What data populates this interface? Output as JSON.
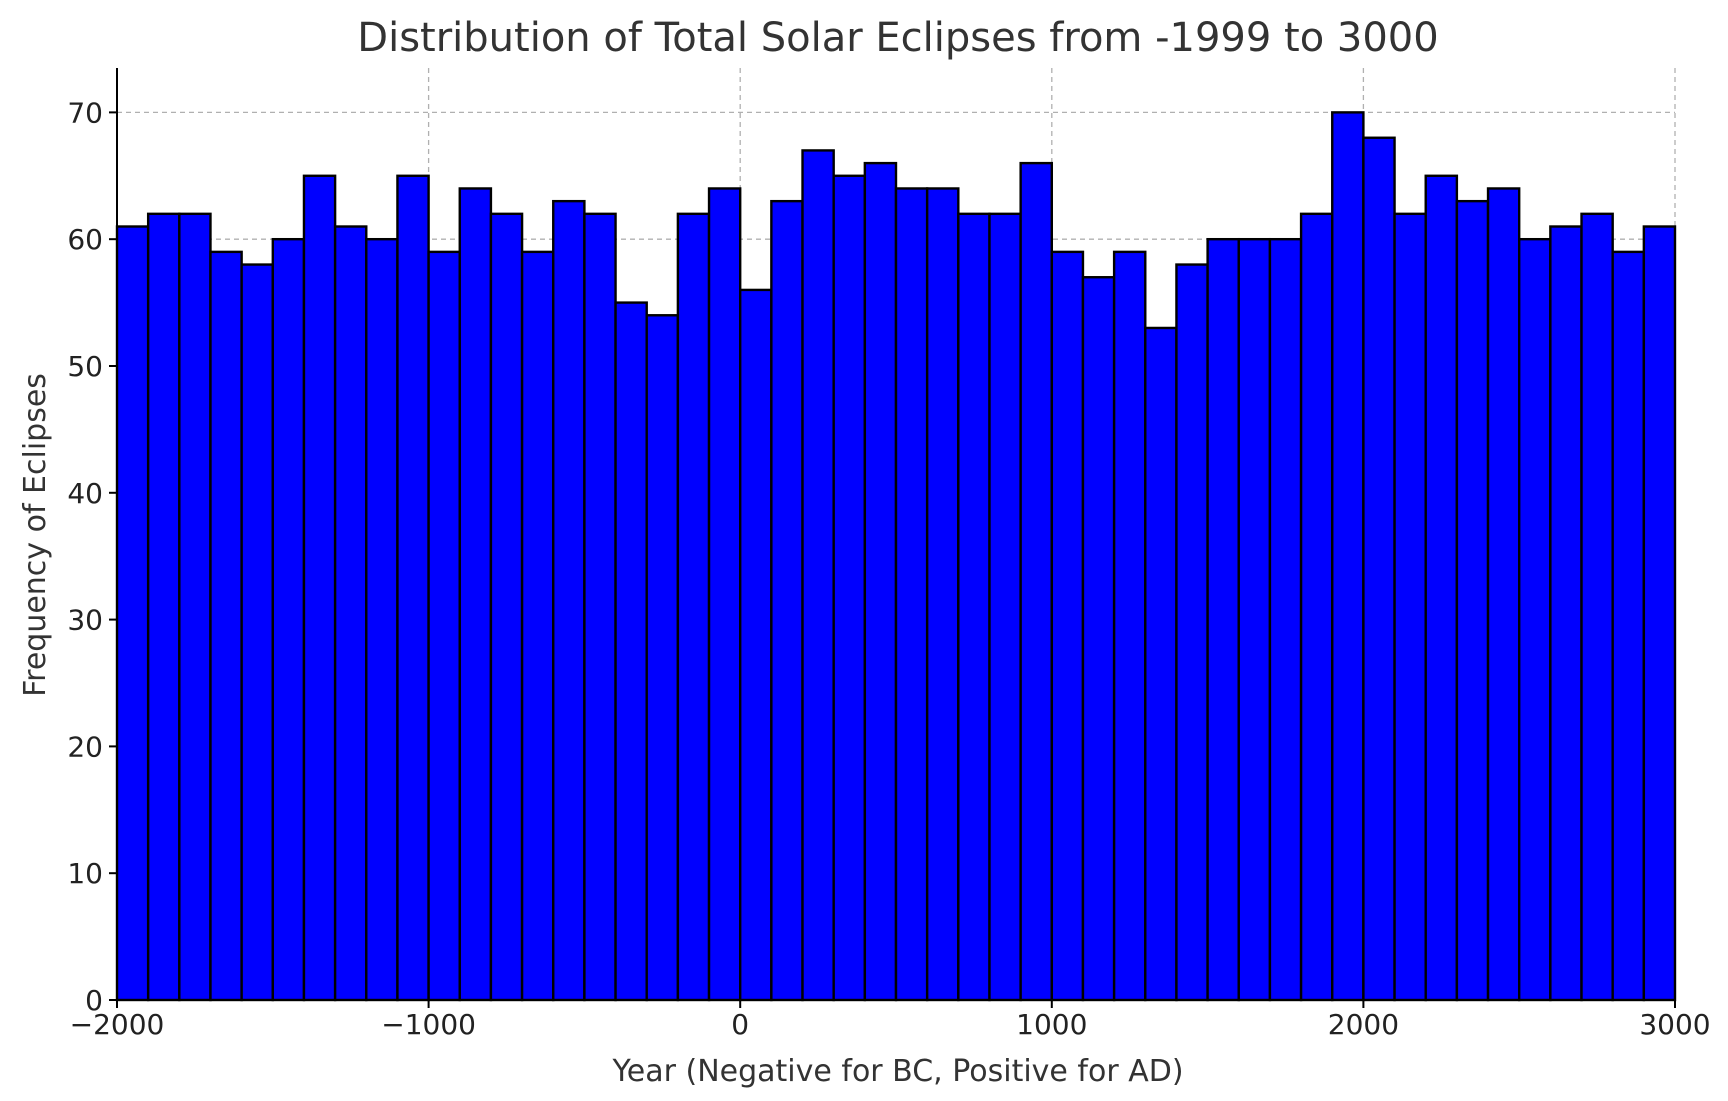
{
  "chart_data": {
    "type": "bar",
    "title": "Distribution of Total Solar Eclipses from -1999 to 3000",
    "xlabel": "Year (Negative for BC, Positive for AD)",
    "ylabel": "Frequency of Eclipses",
    "xlim": [
      -2000,
      3000
    ],
    "ylim": [
      0,
      73.5
    ],
    "bin_width": 100,
    "bin_starts": [
      -2000,
      -1900,
      -1800,
      -1700,
      -1600,
      -1500,
      -1400,
      -1300,
      -1200,
      -1100,
      -1000,
      -900,
      -800,
      -700,
      -600,
      -500,
      -400,
      -300,
      -200,
      -100,
      0,
      100,
      200,
      300,
      400,
      500,
      600,
      700,
      800,
      900,
      1000,
      1100,
      1200,
      1300,
      1400,
      1500,
      1600,
      1700,
      1800,
      1900,
      2000,
      2100,
      2200,
      2300,
      2400,
      2500,
      2600,
      2700,
      2800,
      2900
    ],
    "values": [
      61,
      62,
      62,
      59,
      58,
      60,
      65,
      61,
      60,
      65,
      59,
      64,
      62,
      59,
      63,
      62,
      55,
      54,
      62,
      64,
      56,
      63,
      67,
      65,
      66,
      64,
      64,
      62,
      62,
      66,
      59,
      57,
      59,
      53,
      58,
      60,
      60,
      60,
      62,
      70,
      68,
      62,
      65,
      63,
      64,
      60,
      61,
      62,
      59,
      61
    ],
    "x_ticks": [
      -2000,
      -1000,
      0,
      1000,
      2000,
      3000
    ],
    "x_tick_labels": [
      "−2000",
      "−1000",
      "0",
      "1000",
      "2000",
      "3000"
    ],
    "y_ticks": [
      0,
      10,
      20,
      30,
      40,
      50,
      60,
      70
    ],
    "y_tick_labels": [
      "0",
      "10",
      "20",
      "30",
      "40",
      "50",
      "60",
      "70"
    ],
    "grid": true,
    "bar_color": "#0000ff",
    "edge_color": "#000000"
  }
}
